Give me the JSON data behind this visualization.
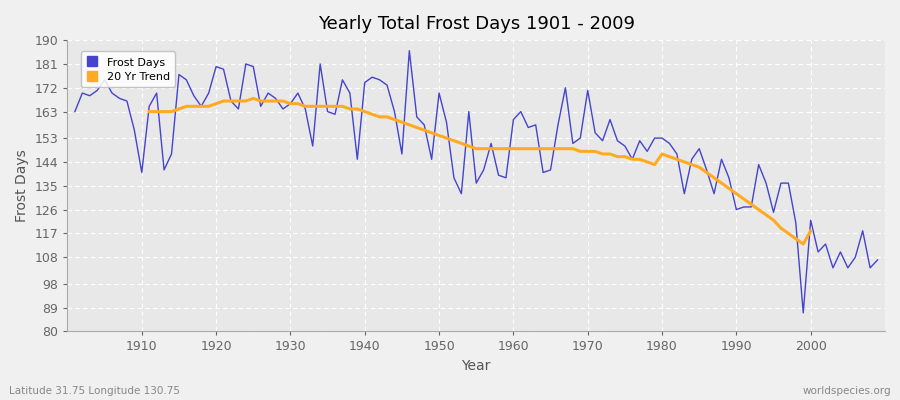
{
  "title": "Yearly Total Frost Days 1901 - 2009",
  "xlabel": "Year",
  "ylabel": "Frost Days",
  "footnote_left": "Latitude 31.75 Longitude 130.75",
  "footnote_right": "worldspecies.org",
  "legend_labels": [
    "Frost Days",
    "20 Yr Trend"
  ],
  "line_color": "#4444cc",
  "trend_color": "#ffaa22",
  "bg_color": "#f0f0f0",
  "plot_bg_color": "#e8e8e8",
  "grid_color": "#ffffff",
  "ylim": [
    80,
    190
  ],
  "yticks": [
    80,
    89,
    98,
    108,
    117,
    126,
    135,
    144,
    153,
    163,
    172,
    181,
    190
  ],
  "xlim_left": 1900,
  "xlim_right": 2010,
  "years": [
    1901,
    1902,
    1903,
    1904,
    1905,
    1906,
    1907,
    1908,
    1909,
    1910,
    1911,
    1912,
    1913,
    1914,
    1915,
    1916,
    1917,
    1918,
    1919,
    1920,
    1921,
    1922,
    1923,
    1924,
    1925,
    1926,
    1927,
    1928,
    1929,
    1930,
    1931,
    1932,
    1933,
    1934,
    1935,
    1936,
    1937,
    1938,
    1939,
    1940,
    1941,
    1942,
    1943,
    1944,
    1945,
    1946,
    1947,
    1948,
    1949,
    1950,
    1951,
    1952,
    1953,
    1954,
    1955,
    1956,
    1957,
    1958,
    1959,
    1960,
    1961,
    1962,
    1963,
    1964,
    1965,
    1966,
    1967,
    1968,
    1969,
    1970,
    1971,
    1972,
    1973,
    1974,
    1975,
    1976,
    1977,
    1978,
    1979,
    1980,
    1981,
    1982,
    1983,
    1984,
    1985,
    1986,
    1987,
    1988,
    1989,
    1990,
    1991,
    1992,
    1993,
    1994,
    1995,
    1996,
    1997,
    1998,
    1999,
    2000,
    2001,
    2002,
    2003,
    2004,
    2005,
    2006,
    2007,
    2008,
    2009
  ],
  "frost_days": [
    163,
    170,
    169,
    171,
    175,
    170,
    168,
    167,
    156,
    140,
    165,
    170,
    141,
    147,
    177,
    175,
    169,
    165,
    170,
    180,
    179,
    167,
    164,
    181,
    180,
    165,
    170,
    168,
    164,
    166,
    170,
    164,
    150,
    181,
    163,
    162,
    175,
    170,
    145,
    174,
    176,
    175,
    173,
    163,
    147,
    186,
    161,
    158,
    145,
    170,
    159,
    138,
    132,
    163,
    136,
    141,
    151,
    139,
    138,
    160,
    163,
    157,
    158,
    140,
    141,
    158,
    172,
    151,
    153,
    171,
    155,
    152,
    160,
    152,
    150,
    145,
    152,
    148,
    153,
    153,
    151,
    147,
    132,
    145,
    149,
    141,
    132,
    145,
    138,
    126,
    127,
    127,
    143,
    136,
    125,
    136,
    136,
    121,
    87,
    122,
    110,
    113,
    104,
    110,
    104,
    108,
    118,
    104,
    107
  ],
  "trend_years": [
    1911,
    1912,
    1913,
    1914,
    1915,
    1916,
    1917,
    1918,
    1919,
    1920,
    1921,
    1922,
    1923,
    1924,
    1925,
    1926,
    1927,
    1928,
    1929,
    1930,
    1931,
    1932,
    1933,
    1934,
    1935,
    1936,
    1937,
    1938,
    1939,
    1940,
    1941,
    1942,
    1943,
    1944,
    1945,
    1946,
    1947,
    1948,
    1949,
    1950,
    1951,
    1952,
    1953,
    1954,
    1955,
    1956,
    1957,
    1958,
    1959,
    1960,
    1961,
    1962,
    1963,
    1964,
    1965,
    1966,
    1967,
    1968,
    1969,
    1970,
    1971,
    1972,
    1973,
    1974,
    1975,
    1976,
    1977,
    1978,
    1979,
    1980,
    1981,
    1982,
    1983,
    1984,
    1985,
    1986,
    1987,
    1988,
    1989,
    1990,
    1991,
    1992,
    1993,
    1994,
    1995,
    1996,
    1997,
    1998,
    1999,
    2000
  ],
  "trend_values": [
    163,
    163,
    163,
    163,
    164,
    165,
    165,
    165,
    165,
    166,
    167,
    167,
    167,
    167,
    168,
    167,
    167,
    167,
    167,
    166,
    166,
    165,
    165,
    165,
    165,
    165,
    165,
    164,
    164,
    163,
    162,
    161,
    161,
    160,
    159,
    158,
    157,
    156,
    155,
    154,
    153,
    152,
    151,
    150,
    149,
    149,
    149,
    149,
    149,
    149,
    149,
    149,
    149,
    149,
    149,
    149,
    149,
    149,
    148,
    148,
    148,
    147,
    147,
    146,
    146,
    145,
    145,
    144,
    143,
    147,
    146,
    145,
    144,
    143,
    142,
    140,
    138,
    136,
    134,
    132,
    130,
    128,
    126,
    124,
    122,
    119,
    117,
    115,
    113,
    118
  ]
}
